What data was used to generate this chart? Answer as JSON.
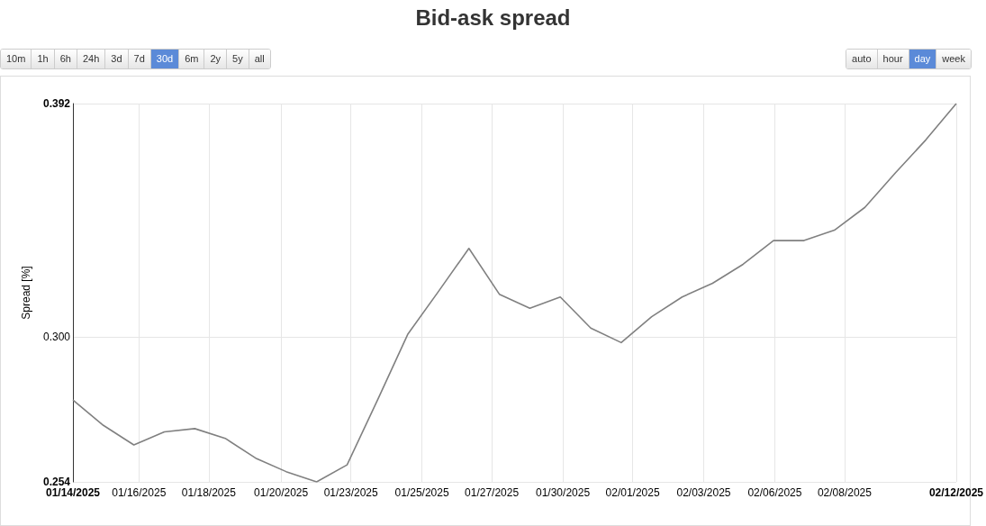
{
  "chart_data": {
    "type": "line",
    "title": "Bid-ask spread",
    "ylabel": "Spread [%]",
    "annotations": [
      "10m",
      "1h",
      "6h",
      "24h",
      "3d",
      "7d",
      "30d",
      "6m",
      "2y",
      "5y",
      "all",
      "auto",
      "hour",
      "day",
      "week"
    ],
    "x": [
      "2025-01-14",
      "2025-01-15",
      "2025-01-16",
      "2025-01-17",
      "2025-01-18",
      "2025-01-19",
      "2025-01-20",
      "2025-01-21",
      "2025-01-22",
      "2025-01-23",
      "2025-01-24",
      "2025-01-25",
      "2025-01-26",
      "2025-01-27",
      "2025-01-28",
      "2025-01-29",
      "2025-01-30",
      "2025-01-31",
      "2025-02-01",
      "2025-02-02",
      "2025-02-03",
      "2025-02-04",
      "2025-02-05",
      "2025-02-06",
      "2025-02-07",
      "2025-02-08",
      "2025-02-09",
      "2025-02-10",
      "2025-02-11",
      "2025-02-12"
    ],
    "series": [
      {
        "color": "#808080",
        "values": [
          0.279,
          0.271,
          0.265,
          0.269,
          0.27,
          0.267,
          0.261,
          0.257,
          0.254,
          0.259,
          0.279,
          0.301,
          0.316,
          0.332,
          0.315,
          0.31,
          0.314,
          0.303,
          0.298,
          0.307,
          0.314,
          0.319,
          0.326,
          0.335,
          0.335,
          0.339,
          0.348,
          0.362,
          0.376,
          0.392
        ]
      }
    ],
    "xlim": [
      "2025-01-14",
      "2025-02-12"
    ],
    "xticks": [
      {
        "value": "2025-01-14",
        "label": "01/14/2025"
      },
      {
        "value": "2025-01-16T04:00",
        "label": "01/16/2025"
      },
      {
        "value": "2025-01-18T11:00",
        "label": "01/18/2025"
      },
      {
        "value": "2025-01-20T20:00",
        "label": "01/20/2025"
      },
      {
        "value": "2025-01-23T03:00",
        "label": "01/23/2025"
      },
      {
        "value": "2025-01-25T11:00",
        "label": "01/25/2025"
      },
      {
        "value": "2025-01-27T18:00",
        "label": "01/27/2025"
      },
      {
        "value": "2025-01-30T02:00",
        "label": "01/30/2025"
      },
      {
        "value": "2025-02-01T09:00",
        "label": "02/01/2025"
      },
      {
        "value": "2025-02-03T17:00",
        "label": "02/03/2025"
      },
      {
        "value": "2025-02-06T01:00",
        "label": "02/06/2025"
      },
      {
        "value": "2025-02-08T08:00",
        "label": "02/08/2025"
      },
      {
        "value": "2025-02-12",
        "label": "02/12/2025"
      }
    ],
    "ylim": [
      0.254,
      0.392
    ],
    "yticks": [
      0.254,
      {
        "value": 0.3,
        "label": "0.300"
      },
      0.392
    ],
    "log": "y",
    "grid": true,
    "marker": "none",
    "line_style": "solid"
  }
}
